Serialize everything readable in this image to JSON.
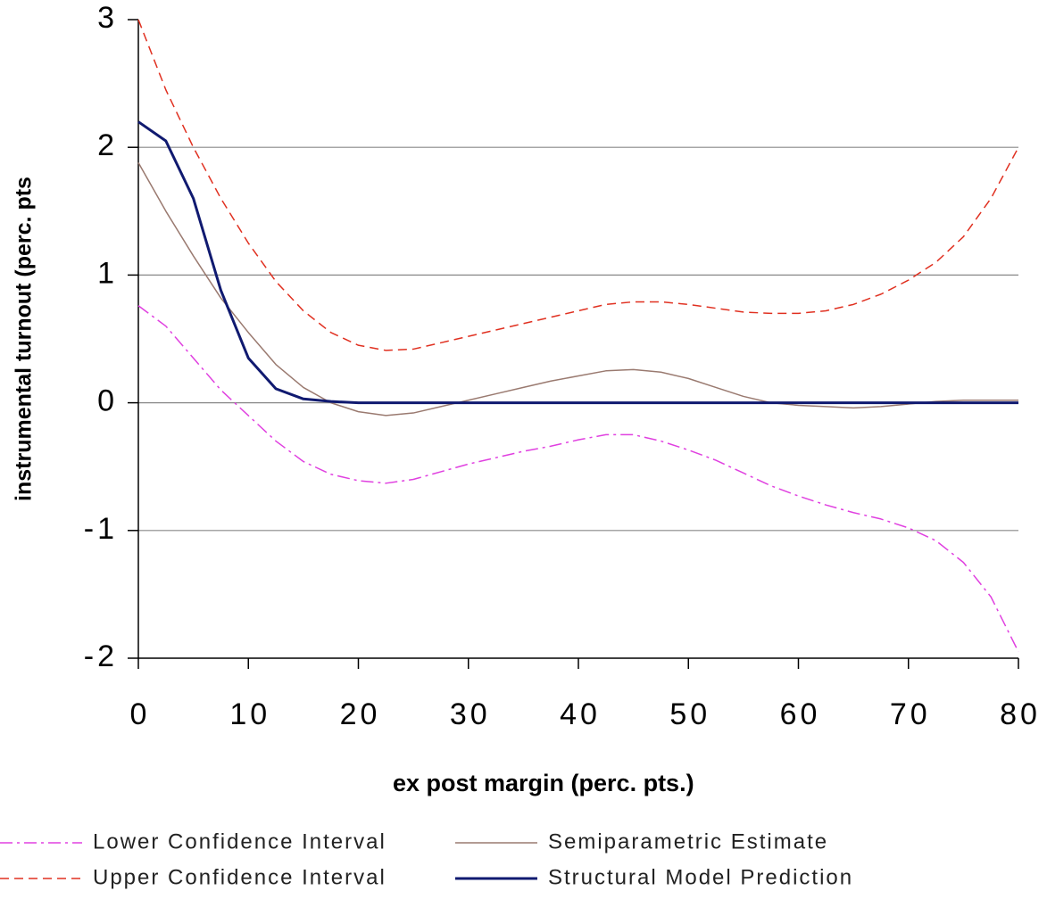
{
  "chart_data": {
    "type": "line",
    "x_label": "ex post margin (perc. pts.)",
    "y_label": "instrumental turnout (perc. pts",
    "x": [
      0,
      2.5,
      5,
      7.5,
      10,
      12.5,
      15,
      17.5,
      20,
      22.5,
      25,
      27.5,
      30,
      32.5,
      35,
      37.5,
      40,
      42.5,
      45,
      47.5,
      50,
      52.5,
      55,
      57.5,
      60,
      62.5,
      65,
      67.5,
      70,
      72.5,
      75,
      77.5,
      80
    ],
    "series": [
      {
        "name": "Lower Confidence Interval",
        "color": "#e040e0",
        "style": "dashdot",
        "linewidth": 1.5,
        "values": [
          0.76,
          0.6,
          0.35,
          0.1,
          -0.1,
          -0.3,
          -0.46,
          -0.56,
          -0.61,
          -0.63,
          -0.6,
          -0.54,
          -0.48,
          -0.43,
          -0.38,
          -0.34,
          -0.29,
          -0.25,
          -0.25,
          -0.3,
          -0.37,
          -0.45,
          -0.55,
          -0.65,
          -0.73,
          -0.8,
          -0.86,
          -0.91,
          -0.98,
          -1.08,
          -1.25,
          -1.52,
          -1.95
        ]
      },
      {
        "name": "Upper Confidence Interval",
        "color": "#e03020",
        "style": "dashed",
        "linewidth": 1.5,
        "values": [
          3.0,
          2.45,
          2.0,
          1.6,
          1.25,
          0.95,
          0.72,
          0.55,
          0.45,
          0.41,
          0.42,
          0.47,
          0.52,
          0.57,
          0.62,
          0.67,
          0.72,
          0.77,
          0.79,
          0.79,
          0.77,
          0.74,
          0.71,
          0.7,
          0.7,
          0.72,
          0.77,
          0.85,
          0.96,
          1.1,
          1.3,
          1.6,
          2.0
        ]
      },
      {
        "name": "Semiparametric Estimate",
        "color": "#9a7a70",
        "style": "solid",
        "linewidth": 1.5,
        "values": [
          1.88,
          1.5,
          1.15,
          0.82,
          0.55,
          0.3,
          0.12,
          0.0,
          -0.07,
          -0.1,
          -0.08,
          -0.03,
          0.02,
          0.07,
          0.12,
          0.17,
          0.21,
          0.25,
          0.26,
          0.24,
          0.19,
          0.12,
          0.05,
          0.0,
          -0.02,
          -0.03,
          -0.04,
          -0.03,
          -0.01,
          0.01,
          0.02,
          0.02,
          0.02
        ]
      },
      {
        "name": "Structural Model Prediction",
        "color": "#101a70",
        "style": "solid",
        "linewidth": 3,
        "values": [
          2.2,
          2.05,
          1.6,
          0.88,
          0.35,
          0.11,
          0.03,
          0.01,
          0,
          0,
          0,
          0,
          0,
          0,
          0,
          0,
          0,
          0,
          0,
          0,
          0,
          0,
          0,
          0,
          0,
          0,
          0,
          0,
          0,
          0,
          0,
          0,
          0
        ]
      }
    ],
    "xlim": [
      0,
      80
    ],
    "xticks": [
      0,
      10,
      20,
      30,
      40,
      50,
      60,
      70,
      80
    ],
    "ylim": [
      -2,
      3
    ],
    "yticks": [
      -2,
      -1,
      0,
      1,
      2,
      3
    ],
    "grid": true,
    "legend": "bottom"
  }
}
